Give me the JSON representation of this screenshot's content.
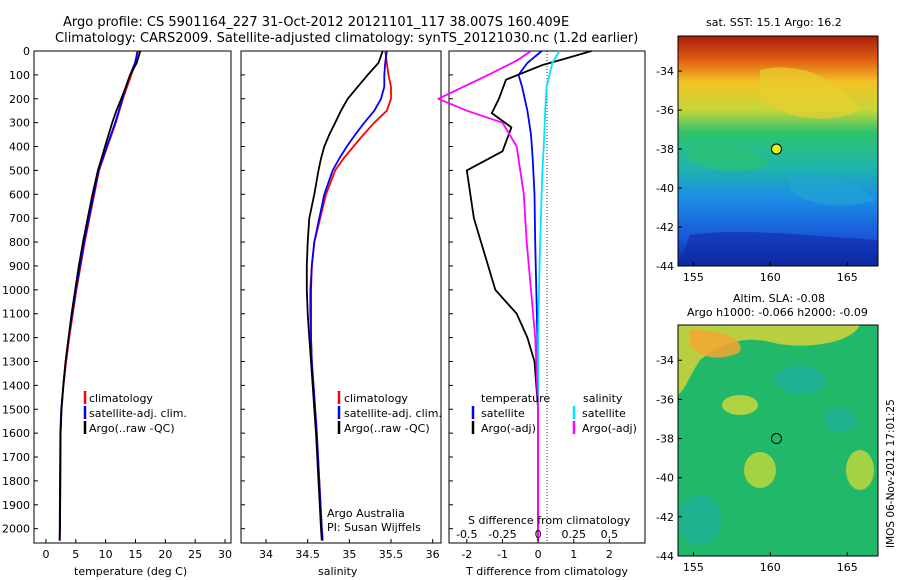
{
  "header": {
    "line1": "Argo profile: CS 5901164_227 31-Oct-2012 20121101_117 38.007S 160.409E",
    "line2": "Climatology: CARS2009. Satellite-adjusted climatology: synTS_20121030.nc (1.2d earlier)"
  },
  "colors": {
    "climatology": "#ff0000",
    "satellite": "#0000ff",
    "argo": "#000000",
    "salinity_satellite": "#00e5ff",
    "salinity_argo": "#ff00ff"
  },
  "depth_axis": {
    "ticks": [
      "0",
      "100",
      "200",
      "300",
      "400",
      "500",
      "600",
      "700",
      "800",
      "900",
      "1000",
      "1100",
      "1200",
      "1300",
      "1400",
      "1500",
      "1600",
      "1700",
      "1800",
      "1900",
      "2000"
    ]
  },
  "chart_data": [
    {
      "type": "line",
      "xlabel": "temperature (deg C)",
      "ylabel": "",
      "xlim": [
        -2,
        31
      ],
      "ylim": [
        2060,
        0
      ],
      "xticks": [
        "0",
        "5",
        "10",
        "15",
        "20",
        "25",
        "30"
      ],
      "legend": {
        "position": "lower-left",
        "entries": [
          "climatology",
          "satellite-adj. clim.",
          "Argo(..raw -QC)"
        ]
      },
      "series": [
        {
          "name": "climatology",
          "x": [
            15.3,
            15.0,
            14.3,
            13.6,
            12.9,
            12.3,
            11.7,
            11.0,
            10.3,
            9.6,
            8.9,
            8.1,
            7.3,
            6.5,
            5.8,
            5.1,
            4.5,
            3.9,
            3.4,
            2.95,
            2.6,
            2.45,
            2.4,
            2.35,
            2.3
          ],
          "y": [
            0,
            50,
            100,
            150,
            200,
            250,
            300,
            350,
            400,
            450,
            500,
            600,
            700,
            800,
            900,
            1000,
            1100,
            1200,
            1300,
            1400,
            1500,
            1600,
            1800,
            2000,
            2050
          ]
        },
        {
          "name": "satellite-adj. clim.",
          "x": [
            15.4,
            14.9,
            14.1,
            13.4,
            12.8,
            12.2,
            11.6,
            10.9,
            10.2,
            9.5,
            8.8,
            8.0,
            7.2,
            6.4,
            5.7,
            5.0,
            4.4,
            3.8,
            3.3,
            2.9,
            2.55,
            2.4,
            2.35,
            2.3,
            2.3
          ],
          "y": [
            0,
            50,
            100,
            150,
            200,
            250,
            300,
            350,
            400,
            450,
            500,
            600,
            700,
            800,
            900,
            1000,
            1100,
            1200,
            1300,
            1400,
            1500,
            1600,
            1800,
            2000,
            2050
          ]
        },
        {
          "name": "Argo(..raw -QC)",
          "x": [
            15.8,
            15.2,
            14.1,
            13.4,
            12.6,
            11.8,
            11.1,
            10.5,
            9.9,
            9.3,
            8.7,
            7.8,
            7.0,
            6.2,
            5.5,
            4.9,
            4.3,
            3.8,
            3.3,
            2.9,
            2.6,
            2.45,
            2.4,
            2.35,
            2.3
          ],
          "y": [
            0,
            50,
            100,
            150,
            200,
            250,
            300,
            350,
            400,
            450,
            500,
            600,
            700,
            800,
            900,
            1000,
            1100,
            1200,
            1300,
            1400,
            1500,
            1600,
            1800,
            2000,
            2050
          ]
        }
      ]
    },
    {
      "type": "line",
      "xlabel": "salinity",
      "ylabel": "",
      "xlim": [
        33.7,
        36.1
      ],
      "ylim": [
        2060,
        0
      ],
      "xticks": [
        "34",
        "34.5",
        "35",
        "35.5",
        "36"
      ],
      "legend": {
        "position": "lower-left",
        "entries": [
          "climatology",
          "satellite-adj. clim.",
          "Argo(..raw -QC)"
        ]
      },
      "series": [
        {
          "name": "climatology",
          "x": [
            35.43,
            35.45,
            35.47,
            35.5,
            35.5,
            35.45,
            35.3,
            35.17,
            35.05,
            34.93,
            34.83,
            34.72,
            34.65,
            34.58,
            34.55,
            34.53,
            34.53,
            34.54,
            34.55,
            34.57,
            34.59,
            34.61,
            34.64,
            34.67,
            34.68
          ],
          "y": [
            0,
            50,
            100,
            150,
            200,
            250,
            300,
            350,
            400,
            450,
            500,
            600,
            700,
            800,
            900,
            1000,
            1100,
            1200,
            1300,
            1400,
            1500,
            1600,
            1800,
            2000,
            2050
          ]
        },
        {
          "name": "satellite-adj. clim.",
          "x": [
            35.45,
            35.43,
            35.42,
            35.42,
            35.38,
            35.3,
            35.18,
            35.07,
            34.97,
            34.88,
            34.8,
            34.7,
            34.64,
            34.58,
            34.55,
            34.54,
            34.54,
            34.54,
            34.55,
            34.57,
            34.59,
            34.61,
            34.64,
            34.67,
            34.68
          ],
          "y": [
            0,
            50,
            100,
            150,
            200,
            250,
            300,
            350,
            400,
            450,
            500,
            600,
            700,
            800,
            900,
            1000,
            1100,
            1200,
            1300,
            1400,
            1500,
            1600,
            1800,
            2000,
            2050
          ]
        },
        {
          "name": "Argo(..raw -QC)",
          "x": [
            35.4,
            35.35,
            35.22,
            35.1,
            34.98,
            34.9,
            34.83,
            34.76,
            34.7,
            34.66,
            34.63,
            34.58,
            34.52,
            34.5,
            34.49,
            34.49,
            34.5,
            34.52,
            34.54,
            34.56,
            34.58,
            34.6,
            34.63,
            34.66,
            34.67
          ],
          "y": [
            0,
            50,
            100,
            150,
            200,
            250,
            300,
            350,
            400,
            450,
            500,
            600,
            700,
            800,
            900,
            1000,
            1100,
            1200,
            1300,
            1400,
            1500,
            1600,
            1800,
            2000,
            2050
          ]
        }
      ]
    },
    {
      "type": "line",
      "xlabel": "T difference from climatology",
      "xlabel_top": "S difference from climatology",
      "ylabel": "",
      "xlim": [
        -2.5,
        3.0
      ],
      "ylim": [
        2060,
        0
      ],
      "xticks": [
        "-2",
        "-1",
        "0",
        "1",
        "2"
      ],
      "xticks_top": [
        "-0.5",
        "-0.25",
        "0",
        "0.25",
        "0.5"
      ],
      "legend": {
        "position": "lower-center",
        "temperature_title": "temperature",
        "salinity_title": "salinity",
        "entries": [
          "satellite",
          "Argo(-adj)",
          "satellite",
          "Argo(-adj)"
        ]
      },
      "series": [
        {
          "name": "T satellite",
          "x": [
            0.1,
            -0.3,
            -0.55,
            -0.45,
            -0.3,
            -0.2,
            -0.15,
            -0.1,
            -0.08,
            -0.05,
            -0.02,
            0.0,
            0.0,
            0.0,
            0.0
          ],
          "y": [
            0,
            50,
            100,
            150,
            250,
            350,
            450,
            600,
            800,
            1000,
            1200,
            1400,
            1600,
            1800,
            2050
          ]
        },
        {
          "name": "T Argo(-adj)",
          "x": [
            1.5,
            0.8,
            0.1,
            -0.9,
            -1.1,
            -1.3,
            -0.75,
            -1.0,
            -2.0,
            -1.8,
            -1.4,
            -1.2,
            -0.6,
            -0.3,
            -0.1,
            0.0,
            0.0,
            0.0
          ],
          "y": [
            0,
            30,
            60,
            120,
            200,
            260,
            320,
            420,
            500,
            700,
            900,
            1000,
            1100,
            1200,
            1300,
            1500,
            1800,
            2050
          ]
        },
        {
          "name": "S satellite",
          "x": [
            0.15,
            0.1,
            0.08,
            0.06,
            0.05,
            0.04,
            0.03,
            0.02,
            0.01,
            0.0,
            0.0,
            0.0
          ],
          "y": [
            0,
            50,
            100,
            150,
            250,
            400,
            500,
            700,
            900,
            1200,
            1600,
            2050
          ]
        },
        {
          "name": "S Argo(-adj)",
          "x": [
            -0.05,
            -0.15,
            -0.35,
            -0.7,
            -0.5,
            -0.25,
            -0.15,
            -0.1,
            -0.08,
            -0.05,
            -0.02,
            0.0,
            0.0
          ],
          "y": [
            0,
            40,
            100,
            200,
            250,
            300,
            400,
            600,
            800,
            1000,
            1200,
            1500,
            2050
          ]
        }
      ]
    },
    {
      "type": "heatmap",
      "title": "sat. SST: 15.1 Argo: 16.2",
      "xticks": [
        "155",
        "160",
        "165"
      ],
      "yticks": [
        "-34",
        "-36",
        "-38",
        "-40",
        "-42",
        "-44"
      ],
      "xlim": [
        154,
        167
      ],
      "ylim": [
        -44,
        -32.2
      ],
      "marker": {
        "x": 160.4,
        "y": -38.0
      }
    },
    {
      "type": "heatmap",
      "title": "Altim. SLA: -0.08",
      "subtitle": "Argo h1000: -0.066 h2000: -0.09",
      "xticks": [
        "155",
        "160",
        "165"
      ],
      "yticks": [
        "-34",
        "-36",
        "-38",
        "-40",
        "-42",
        "-44"
      ],
      "xlim": [
        154,
        167
      ],
      "ylim": [
        -44,
        -32.2
      ],
      "marker": {
        "x": 160.4,
        "y": -38.0
      }
    }
  ],
  "annotations": {
    "org": "Argo Australia",
    "pi": "PI: Susan Wijffels",
    "stamp": "IMOS 06-Nov-2012 17:01:25"
  }
}
